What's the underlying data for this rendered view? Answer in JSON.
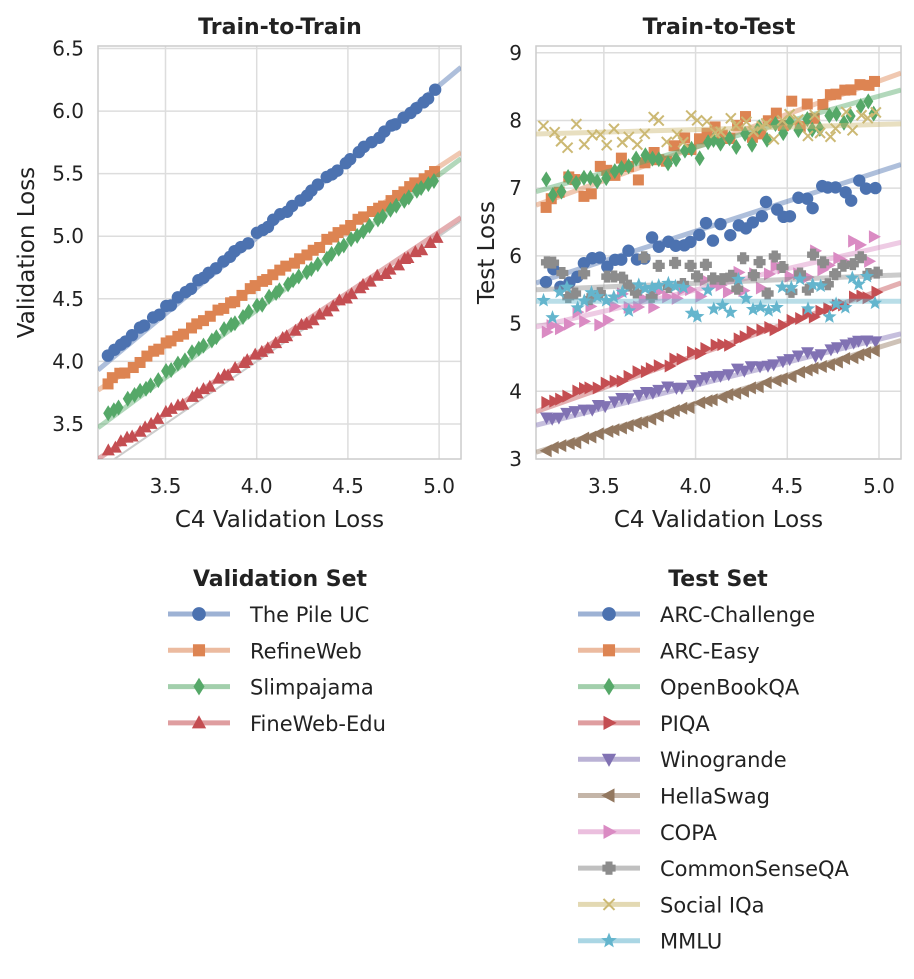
{
  "chart_data": [
    {
      "type": "scatter",
      "title": "Train-to-Train",
      "xlabel": "C4 Validation Loss",
      "ylabel": "Validation Loss",
      "xlim": [
        3.13,
        5.12
      ],
      "ylim": [
        3.22,
        6.52
      ],
      "xticks": [
        "3.5",
        "4.0",
        "4.5",
        "5.0"
      ],
      "yticks": [
        "3.5",
        "4.0",
        "4.5",
        "5.0",
        "5.5",
        "6.0",
        "6.5"
      ],
      "legend_title": "Validation Set",
      "series": [
        {
          "name": "The Pile UC",
          "color": "#4c72b0",
          "marker": "circle",
          "fit": [
            3.93,
            6.35
          ],
          "y_start": 4.05,
          "y_end": 6.16
        },
        {
          "name": "RefineWeb",
          "color": "#dd8452",
          "marker": "square",
          "fit": [
            3.77,
            5.67
          ],
          "y_start": 3.83,
          "y_end": 5.52
        },
        {
          "name": "Slimpajama",
          "color": "#55a868",
          "marker": "diamond",
          "fit": [
            3.47,
            5.62
          ],
          "y_start": 3.57,
          "y_end": 5.46
        },
        {
          "name": "FineWeb-Edu",
          "color": "#c44e52",
          "marker": "triangle-up",
          "fit": [
            3.22,
            5.15
          ],
          "y_start": 3.28,
          "y_end": 4.97
        }
      ]
    },
    {
      "type": "scatter",
      "title": "Train-to-Test",
      "xlabel": "C4 Validation Loss",
      "ylabel": "Test Loss",
      "xlim": [
        3.13,
        5.12
      ],
      "ylim": [
        3.0,
        9.1
      ],
      "xticks": [
        "3.5",
        "4.0",
        "4.5",
        "5.0"
      ],
      "yticks": [
        "3",
        "4",
        "5",
        "6",
        "7",
        "8",
        "9"
      ],
      "legend_title": "Test Set",
      "series": [
        {
          "name": "ARC-Challenge",
          "color": "#4c72b0",
          "marker": "circle",
          "fit": [
            5.6,
            7.35
          ],
          "y_start": 5.65,
          "y_end": 7.1,
          "noise": 0.18
        },
        {
          "name": "ARC-Easy",
          "color": "#dd8452",
          "marker": "square",
          "fit": [
            6.75,
            8.7
          ],
          "y_start": 6.85,
          "y_end": 8.5,
          "noise": 0.22
        },
        {
          "name": "OpenBookQA",
          "color": "#55a868",
          "marker": "diamond",
          "fit": [
            6.95,
            8.45
          ],
          "y_start": 7.0,
          "y_end": 8.2,
          "noise": 0.13
        },
        {
          "name": "PIQA",
          "color": "#c44e52",
          "marker": "triangle-right",
          "fit": [
            3.7,
            5.6
          ],
          "y_start": 3.8,
          "y_end": 5.45,
          "noise": 0.05
        },
        {
          "name": "Winogrande",
          "color": "#8172b3",
          "marker": "triangle-down",
          "fit": [
            3.5,
            4.85
          ],
          "y_start": 3.6,
          "y_end": 4.78,
          "noise": 0.05
        },
        {
          "name": "HellaSwag",
          "color": "#937860",
          "marker": "triangle-left",
          "fit": [
            3.1,
            4.75
          ],
          "y_start": 3.12,
          "y_end": 4.6,
          "noise": 0.02
        },
        {
          "name": "COPA",
          "color": "#da8bc3",
          "marker": "triangle-right",
          "fit": [
            4.95,
            6.2
          ],
          "y_start": 5.0,
          "y_end": 6.1,
          "noise": 0.2
        },
        {
          "name": "CommonSenseQA",
          "color": "#8c8c8c",
          "marker": "plus",
          "fit": [
            5.5,
            5.72
          ],
          "y_start": 5.6,
          "y_end": 5.8,
          "noise": 0.32
        },
        {
          "name": "Social IQa",
          "color": "#ccb974",
          "marker": "x",
          "fit": [
            7.8,
            7.95
          ],
          "y_start": 7.8,
          "y_end": 7.95,
          "noise": 0.22
        },
        {
          "name": "MMLU",
          "color": "#64b5cd",
          "marker": "star",
          "fit": [
            5.33,
            5.33
          ],
          "y_start": 5.3,
          "y_end": 5.4,
          "noise": 0.3
        }
      ]
    }
  ]
}
